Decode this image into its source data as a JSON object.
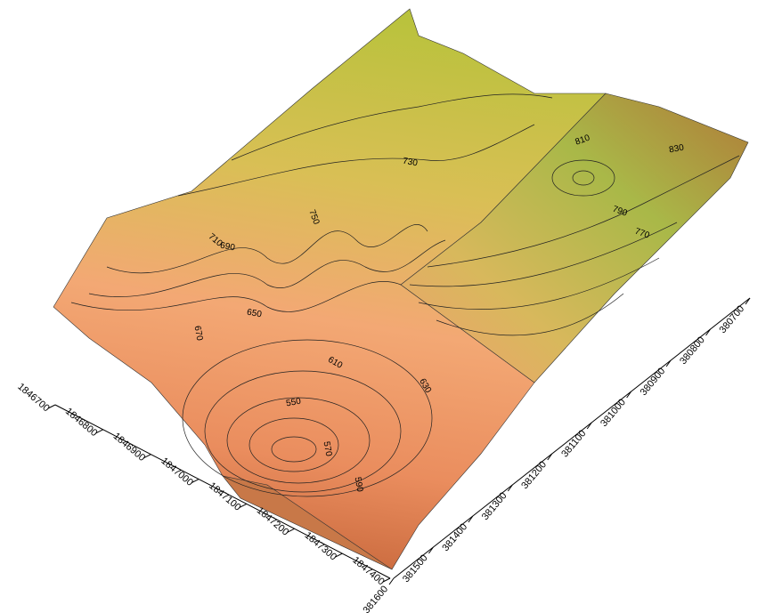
{
  "chart_data": {
    "type": "surface",
    "xlim": [
      1846700,
      1847400
    ],
    "xticks": [
      1846700,
      1846800,
      1846900,
      1847000,
      1847100,
      1847200,
      1847300,
      1847400
    ],
    "ylim": [
      381600,
      380700
    ],
    "yticks": [
      381600,
      381500,
      381400,
      381300,
      381200,
      381100,
      381000,
      380900,
      380800,
      380700
    ],
    "contour_levels": [
      550,
      570,
      590,
      610,
      630,
      650,
      670,
      690,
      710,
      730,
      750,
      770,
      790,
      810,
      830
    ]
  }
}
